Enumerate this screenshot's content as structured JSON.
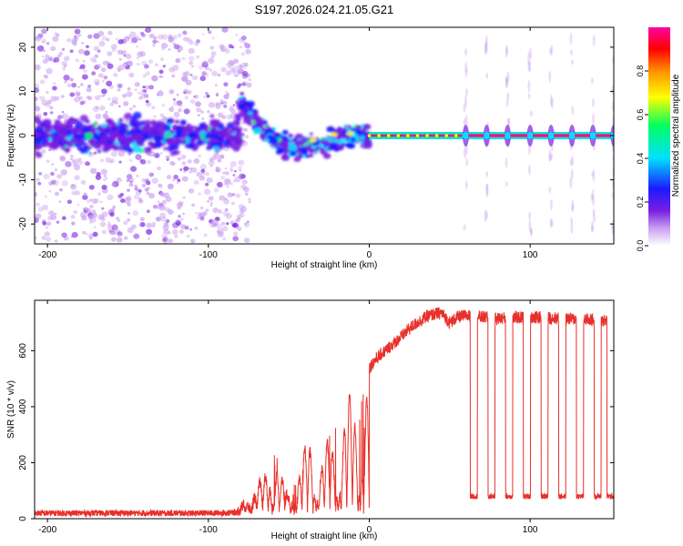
{
  "figure": {
    "title": "S197.2026.024.21.05.G21"
  },
  "chart_data": [
    {
      "type": "heatmap",
      "title": "S197.2026.024.21.05.G21",
      "xlabel": "Height of straight line (km)",
      "ylabel": "Frequency (Hz)",
      "xlim": [
        -208,
        152
      ],
      "ylim": [
        -24.5,
        24.5
      ],
      "xticks": [
        -200,
        -100,
        0,
        100
      ],
      "xtick_labels": [
        "-200",
        "-100",
        "0",
        "100"
      ],
      "yticks": [
        20,
        10,
        0,
        -10,
        -20
      ],
      "ytick_labels": [
        "20",
        "10",
        "0",
        "-10",
        "-20"
      ],
      "carrier_frequency_hz": 0,
      "carrier_continuous_x_range_km": [
        0,
        60
      ],
      "scatter_region_x_range_km": [
        -208,
        -80
      ],
      "descending_band": [
        {
          "x": -80,
          "y": 8
        },
        {
          "x": -75,
          "y": 5
        },
        {
          "x": -60,
          "y": -1
        },
        {
          "x": -45,
          "y": -3
        },
        {
          "x": -30,
          "y": -2
        },
        {
          "x": -15,
          "y": 0
        },
        {
          "x": 0,
          "y": 0
        }
      ],
      "pulse_centers_km": [
        60,
        73,
        86,
        100,
        113,
        126,
        139,
        152
      ],
      "colorbar": {
        "label": "Normalized spectral amplitude",
        "range": [
          0,
          1
        ],
        "ticks": [
          0.0,
          0.2,
          0.4,
          0.6,
          0.8
        ],
        "tick_labels": [
          "0.0",
          "0.2",
          "0.4",
          "0.6",
          "0.8"
        ],
        "colors": [
          "#ffffff",
          "#c9a0f0",
          "#7a1fe0",
          "#1a1aff",
          "#00e0ff",
          "#00ff60",
          "#ffff00",
          "#ff9000",
          "#ff0000",
          "#ff00a0"
        ]
      }
    },
    {
      "type": "line",
      "xlabel": "Height of straight line (km)",
      "ylabel": "SNR (10 * v/v)",
      "xlim": [
        -208,
        152
      ],
      "ylim": [
        0,
        780
      ],
      "xticks": [
        -200,
        -100,
        0,
        100
      ],
      "xtick_labels": [
        "-200",
        "-100",
        "0",
        "100"
      ],
      "yticks": [
        0,
        200,
        400,
        600
      ],
      "ytick_labels": [
        "0",
        "200",
        "400",
        "600"
      ],
      "line_color": "#e8302a",
      "series": [
        {
          "name": "SNR",
          "x": [
            -208,
            -150,
            -100,
            -82,
            -75,
            -70,
            -65,
            -60,
            -55,
            -50,
            -45,
            -40,
            -35,
            -30,
            -25,
            -20,
            -15,
            -10,
            -5,
            0,
            5,
            10,
            15,
            20,
            25,
            30,
            35,
            40,
            45,
            50,
            55,
            60,
            80,
            100,
            120,
            140,
            152
          ],
          "values": [
            20,
            20,
            20,
            22,
            80,
            120,
            160,
            330,
            150,
            90,
            170,
            250,
            340,
            230,
            300,
            350,
            420,
            460,
            500,
            540,
            575,
            600,
            625,
            650,
            680,
            700,
            720,
            730,
            735,
            700,
            720,
            725,
            715,
            720,
            715,
            710,
            705
          ]
        },
        {
          "name": "dip-floor",
          "x": [
            60,
            152
          ],
          "values": [
            80,
            80
          ]
        }
      ],
      "dip_centers_km": [
        65,
        76,
        87,
        98,
        109,
        120,
        131,
        142,
        150
      ]
    }
  ]
}
